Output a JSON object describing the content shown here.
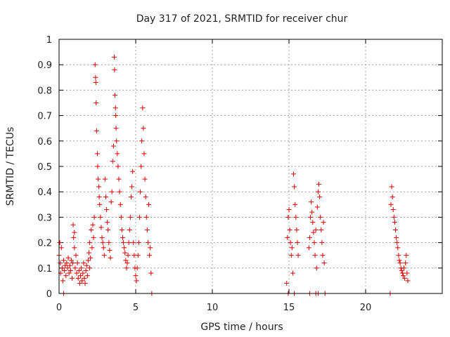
{
  "chart_data": {
    "type": "scatter",
    "title": "Day 317 of 2021, SRMTID for receiver chur",
    "xlabel": "GPS time / hours",
    "ylabel": "SRMTID / TECUs",
    "xlim": [
      0,
      25
    ],
    "ylim": [
      0,
      1
    ],
    "x_ticks": [
      0,
      5,
      10,
      15,
      20
    ],
    "x_tick_labels": [
      "0",
      "5",
      "10",
      "15",
      "20"
    ],
    "y_ticks": [
      0,
      0.1,
      0.2,
      0.3,
      0.4,
      0.5,
      0.6,
      0.7,
      0.8,
      0.9,
      1
    ],
    "y_tick_labels": [
      "0",
      "0.1",
      "0.2",
      "0.3",
      "0.4",
      "0.5",
      "0.6",
      "0.7",
      "0.8",
      "0.9",
      "1"
    ],
    "grid": true,
    "legend": "none",
    "marker": "plus",
    "series": [
      {
        "name": "SRMTID",
        "color": "#e00000",
        "points": [
          [
            0.0,
            0.15
          ],
          [
            0.05,
            0.2
          ],
          [
            0.08,
            0.12
          ],
          [
            0.1,
            0.08
          ],
          [
            0.15,
            0.18
          ],
          [
            0.2,
            0.1
          ],
          [
            0.25,
            0.05
          ],
          [
            0.3,
            0.13
          ],
          [
            0.35,
            0.09
          ],
          [
            0.4,
            0.11
          ],
          [
            0.45,
            0.07
          ],
          [
            0.5,
            0.12
          ],
          [
            0.55,
            0.1
          ],
          [
            0.6,
            0.14
          ],
          [
            0.65,
            0.08
          ],
          [
            0.7,
            0.11
          ],
          [
            0.75,
            0.09
          ],
          [
            0.8,
            0.13
          ],
          [
            0.85,
            0.06
          ],
          [
            0.9,
            0.12
          ],
          [
            0.92,
            0.27
          ],
          [
            0.95,
            0.22
          ],
          [
            1.0,
            0.18
          ],
          [
            1.0,
            0.24
          ],
          [
            1.05,
            0.1
          ],
          [
            1.1,
            0.15
          ],
          [
            1.15,
            0.08
          ],
          [
            1.2,
            0.12
          ],
          [
            1.25,
            0.06
          ],
          [
            1.3,
            0.09
          ],
          [
            1.35,
            0.04
          ],
          [
            1.4,
            0.07
          ],
          [
            1.45,
            0.1
          ],
          [
            1.5,
            0.05
          ],
          [
            1.55,
            0.08
          ],
          [
            1.6,
            0.12
          ],
          [
            1.65,
            0.06
          ],
          [
            1.7,
            0.04
          ],
          [
            1.75,
            0.09
          ],
          [
            1.8,
            0.11
          ],
          [
            1.85,
            0.07
          ],
          [
            1.9,
            0.13
          ],
          [
            1.95,
            0.16
          ],
          [
            2.0,
            0.1
          ],
          [
            2.0,
            0.2
          ],
          [
            2.05,
            0.14
          ],
          [
            2.1,
            0.25
          ],
          [
            2.15,
            0.18
          ],
          [
            2.2,
            0.27
          ],
          [
            2.25,
            0.22
          ],
          [
            2.3,
            0.3
          ],
          [
            2.35,
            0.9
          ],
          [
            2.38,
            0.85
          ],
          [
            2.4,
            0.83
          ],
          [
            2.42,
            0.75
          ],
          [
            2.45,
            0.64
          ],
          [
            2.5,
            0.55
          ],
          [
            2.52,
            0.5
          ],
          [
            2.55,
            0.45
          ],
          [
            2.6,
            0.42
          ],
          [
            2.62,
            0.38
          ],
          [
            2.65,
            0.35
          ],
          [
            2.7,
            0.3
          ],
          [
            2.75,
            0.26
          ],
          [
            2.8,
            0.22
          ],
          [
            2.85,
            0.2
          ],
          [
            2.9,
            0.18
          ],
          [
            2.95,
            0.15
          ],
          [
            3.0,
            0.45
          ],
          [
            3.05,
            0.38
          ],
          [
            3.1,
            0.33
          ],
          [
            3.15,
            0.28
          ],
          [
            3.2,
            0.25
          ],
          [
            3.25,
            0.2
          ],
          [
            3.3,
            0.17
          ],
          [
            3.35,
            0.14
          ],
          [
            3.4,
            0.36
          ],
          [
            3.45,
            0.4
          ],
          [
            3.5,
            0.52
          ],
          [
            3.55,
            0.58
          ],
          [
            3.6,
            0.93
          ],
          [
            3.62,
            0.88
          ],
          [
            3.65,
            0.78
          ],
          [
            3.68,
            0.73
          ],
          [
            3.7,
            0.7
          ],
          [
            3.72,
            0.65
          ],
          [
            3.75,
            0.6
          ],
          [
            3.8,
            0.55
          ],
          [
            3.85,
            0.5
          ],
          [
            3.9,
            0.45
          ],
          [
            3.95,
            0.4
          ],
          [
            4.0,
            0.35
          ],
          [
            4.05,
            0.3
          ],
          [
            4.1,
            0.25
          ],
          [
            4.15,
            0.22
          ],
          [
            4.2,
            0.2
          ],
          [
            4.25,
            0.18
          ],
          [
            4.3,
            0.16
          ],
          [
            4.35,
            0.13
          ],
          [
            4.4,
            0.1
          ],
          [
            4.45,
            0.12
          ],
          [
            4.5,
            0.15
          ],
          [
            4.55,
            0.2
          ],
          [
            4.6,
            0.25
          ],
          [
            4.65,
            0.3
          ],
          [
            4.7,
            0.38
          ],
          [
            4.75,
            0.42
          ],
          [
            4.8,
            0.48
          ],
          [
            4.85,
            0.2
          ],
          [
            4.9,
            0.15
          ],
          [
            4.95,
            0.1
          ],
          [
            5.0,
            0.07
          ],
          [
            5.05,
            0.05
          ],
          [
            5.1,
            0.1
          ],
          [
            5.15,
            0.15
          ],
          [
            5.2,
            0.2
          ],
          [
            5.25,
            0.3
          ],
          [
            5.3,
            0.4
          ],
          [
            5.35,
            0.5
          ],
          [
            5.4,
            0.6
          ],
          [
            5.45,
            0.73
          ],
          [
            5.5,
            0.65
          ],
          [
            5.55,
            0.55
          ],
          [
            5.6,
            0.45
          ],
          [
            5.65,
            0.38
          ],
          [
            5.7,
            0.3
          ],
          [
            5.75,
            0.25
          ],
          [
            5.8,
            0.2
          ],
          [
            5.85,
            0.35
          ],
          [
            5.9,
            0.15
          ],
          [
            5.95,
            0.18
          ],
          [
            6.0,
            0.08
          ],
          [
            0.3,
            0.0
          ],
          [
            6.05,
            0.0
          ],
          [
            14.85,
            0.04
          ],
          [
            14.9,
            0.22
          ],
          [
            14.95,
            0.3
          ],
          [
            15.0,
            0.33
          ],
          [
            15.05,
            0.25
          ],
          [
            15.1,
            0.2
          ],
          [
            15.15,
            0.15
          ],
          [
            15.2,
            0.18
          ],
          [
            15.25,
            0.08
          ],
          [
            15.3,
            0.47
          ],
          [
            15.35,
            0.42
          ],
          [
            15.4,
            0.35
          ],
          [
            15.45,
            0.3
          ],
          [
            15.5,
            0.25
          ],
          [
            15.55,
            0.2
          ],
          [
            15.6,
            0.15
          ],
          [
            14.95,
            0.0
          ],
          [
            15.35,
            0.0
          ],
          [
            16.3,
            0.18
          ],
          [
            16.35,
            0.22
          ],
          [
            16.4,
            0.3
          ],
          [
            16.45,
            0.36
          ],
          [
            16.5,
            0.32
          ],
          [
            16.55,
            0.28
          ],
          [
            16.6,
            0.24
          ],
          [
            16.65,
            0.2
          ],
          [
            16.7,
            0.15
          ],
          [
            16.75,
            0.25
          ],
          [
            16.8,
            0.1
          ],
          [
            16.85,
            0.34
          ],
          [
            16.9,
            0.4
          ],
          [
            16.95,
            0.43
          ],
          [
            17.0,
            0.38
          ],
          [
            17.05,
            0.3
          ],
          [
            17.1,
            0.25
          ],
          [
            17.15,
            0.2
          ],
          [
            17.2,
            0.15
          ],
          [
            17.25,
            0.28
          ],
          [
            17.3,
            0.12
          ],
          [
            16.35,
            0.0
          ],
          [
            16.75,
            0.0
          ],
          [
            16.9,
            0.0
          ],
          [
            17.35,
            0.0
          ],
          [
            21.65,
            0.35
          ],
          [
            21.7,
            0.42
          ],
          [
            21.75,
            0.38
          ],
          [
            21.8,
            0.33
          ],
          [
            21.85,
            0.3
          ],
          [
            21.9,
            0.28
          ],
          [
            21.95,
            0.25
          ],
          [
            22.0,
            0.22
          ],
          [
            22.05,
            0.2
          ],
          [
            22.1,
            0.18
          ],
          [
            22.15,
            0.15
          ],
          [
            22.2,
            0.13
          ],
          [
            22.25,
            0.12
          ],
          [
            22.3,
            0.1
          ],
          [
            22.35,
            0.09
          ],
          [
            22.4,
            0.08
          ],
          [
            22.45,
            0.07
          ],
          [
            22.5,
            0.1
          ],
          [
            22.55,
            0.06
          ],
          [
            22.6,
            0.12
          ],
          [
            22.65,
            0.15
          ],
          [
            22.7,
            0.08
          ],
          [
            22.75,
            0.05
          ],
          [
            21.6,
            0.0
          ]
        ]
      }
    ]
  }
}
